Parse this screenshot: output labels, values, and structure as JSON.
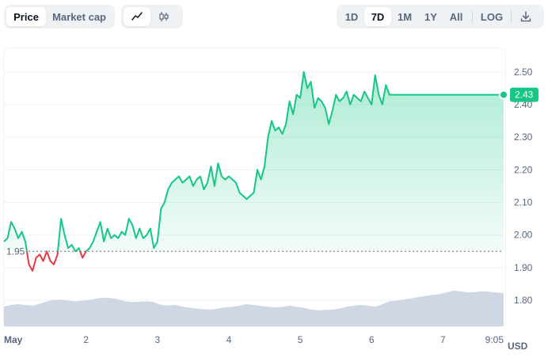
{
  "toolbar": {
    "metric_tabs": [
      {
        "label": "Price",
        "active": true
      },
      {
        "label": "Market cap",
        "active": false
      }
    ],
    "chart_types": [
      {
        "icon": "line-chart-icon",
        "active": true
      },
      {
        "icon": "candlestick-icon",
        "active": false
      }
    ],
    "ranges": [
      {
        "label": "1D",
        "active": false
      },
      {
        "label": "7D",
        "active": true
      },
      {
        "label": "1M",
        "active": false
      },
      {
        "label": "1Y",
        "active": false
      },
      {
        "label": "All",
        "active": false
      }
    ],
    "log_label": "LOG",
    "download_icon": "download-icon"
  },
  "colors": {
    "up": "#16c784",
    "down": "#ea3943",
    "volume": "#cfd6e4",
    "grid": "#eff2f5"
  },
  "chart_data": {
    "type": "line",
    "title": "",
    "x_ticks": [
      "May",
      "2",
      "3",
      "4",
      "5",
      "6",
      "7",
      "9:05"
    ],
    "y_ticks": [
      1.8,
      1.9,
      2.0,
      2.1,
      2.2,
      2.3,
      2.4,
      2.5
    ],
    "y_tick_labels": [
      "1.80",
      "1.90",
      "2.00",
      "2.10",
      "2.20",
      "2.30",
      "2.40",
      "2.50"
    ],
    "ylim": [
      1.72,
      2.57
    ],
    "xlim": [
      0,
      7.0
    ],
    "unit_label": "USD",
    "baseline": 1.95,
    "baseline_label": "1.95",
    "current_price": 2.43,
    "current_label": "2.43",
    "grid": true,
    "series": [
      {
        "x": [
          0.0,
          0.05,
          0.1,
          0.15,
          0.2,
          0.25,
          0.3,
          0.35,
          0.4,
          0.45,
          0.5,
          0.55,
          0.6,
          0.65,
          0.7,
          0.75,
          0.8,
          0.85,
          0.9,
          0.95,
          1.0,
          1.05,
          1.1,
          1.15,
          1.2,
          1.25,
          1.3,
          1.35,
          1.4,
          1.45,
          1.5,
          1.55,
          1.6,
          1.65,
          1.7,
          1.75,
          1.8,
          1.85,
          1.9,
          1.95,
          2.0,
          2.05,
          2.1,
          2.15,
          2.2,
          2.25,
          2.3,
          2.35,
          2.4,
          2.45,
          2.5,
          2.55,
          2.6,
          2.65,
          2.7,
          2.75,
          2.8,
          2.85,
          2.9,
          2.95,
          3.0,
          3.05,
          3.1,
          3.15,
          3.2,
          3.25,
          3.3,
          3.35,
          3.4,
          3.45,
          3.5,
          3.55,
          3.6,
          3.65,
          3.7,
          3.75,
          3.8,
          3.85,
          3.9,
          3.95,
          4.0,
          4.05,
          4.1,
          4.15,
          4.2,
          4.25,
          4.3,
          4.35,
          4.4,
          4.45,
          4.5,
          4.55,
          4.6,
          4.65,
          4.7,
          4.75,
          4.8,
          4.85,
          4.9,
          4.95,
          5.0,
          5.05,
          5.1,
          5.15,
          5.2,
          5.25,
          5.3,
          5.35,
          5.4,
          5.45,
          5.5,
          5.55,
          5.6,
          5.65,
          5.7,
          5.75,
          5.8,
          5.85,
          5.9,
          5.95,
          6.0,
          6.05,
          6.1,
          6.15,
          6.2,
          6.25,
          6.3,
          6.35,
          6.4,
          6.45,
          6.5,
          6.55,
          6.6,
          6.65,
          6.7,
          6.75,
          6.8,
          6.85,
          6.9,
          6.95,
          7.0
        ],
        "y": [
          1.98,
          1.99,
          2.04,
          2.02,
          1.99,
          2.01,
          1.98,
          1.91,
          1.89,
          1.93,
          1.94,
          1.92,
          1.95,
          1.92,
          1.91,
          1.94,
          2.05,
          2.0,
          1.96,
          1.97,
          1.95,
          1.96,
          1.93,
          1.95,
          1.96,
          1.98,
          2.01,
          2.04,
          1.98,
          2.02,
          1.99,
          2.0,
          1.99,
          2.01,
          2.0,
          2.05,
          2.03,
          1.99,
          2.02,
          1.99,
          2.0,
          2.02,
          1.96,
          1.98,
          2.08,
          2.1,
          2.14,
          2.16,
          2.17,
          2.18,
          2.16,
          2.17,
          2.18,
          2.15,
          2.17,
          2.18,
          2.14,
          2.16,
          2.21,
          2.15,
          2.22,
          2.18,
          2.17,
          2.18,
          2.17,
          2.16,
          2.13,
          2.12,
          2.11,
          2.12,
          2.13,
          2.2,
          2.17,
          2.21,
          2.3,
          2.35,
          2.32,
          2.33,
          2.31,
          2.34,
          2.41,
          2.37,
          2.43,
          2.42,
          2.5,
          2.45,
          2.47,
          2.39,
          2.42,
          2.41,
          2.39,
          2.34,
          2.38,
          2.43,
          2.41,
          2.42,
          2.44,
          2.4,
          2.43,
          2.42,
          2.41,
          2.44,
          2.42,
          2.4,
          2.49,
          2.43,
          2.4,
          2.46,
          2.43,
          2.43,
          2.43,
          2.43,
          2.43,
          2.43,
          2.43,
          2.43,
          2.43,
          2.43,
          2.43,
          2.43,
          2.43,
          2.43,
          2.43,
          2.43,
          2.43,
          2.43,
          2.43,
          2.43,
          2.43,
          2.43,
          2.43,
          2.43,
          2.43,
          2.43,
          2.43,
          2.43,
          2.43,
          2.43,
          2.43,
          2.43,
          2.43
        ]
      }
    ],
    "volume": [
      0.55,
      0.6,
      0.62,
      0.6,
      0.58,
      0.63,
      0.7,
      0.74,
      0.75,
      0.72,
      0.7,
      0.72,
      0.74,
      0.78,
      0.8,
      0.79,
      0.76,
      0.7,
      0.68,
      0.69,
      0.7,
      0.68,
      0.6,
      0.58,
      0.6,
      0.55,
      0.52,
      0.5,
      0.48,
      0.47,
      0.5,
      0.53,
      0.55,
      0.58,
      0.62,
      0.6,
      0.57,
      0.55,
      0.53,
      0.55,
      0.58,
      0.55,
      0.52,
      0.47,
      0.45,
      0.46,
      0.47,
      0.5,
      0.55,
      0.58,
      0.6,
      0.58,
      0.55,
      0.62,
      0.7,
      0.72,
      0.75,
      0.78,
      0.82,
      0.85,
      0.88,
      0.9,
      0.95,
      1.0,
      0.98,
      0.95,
      0.96,
      0.98,
      0.97,
      0.95,
      0.93
    ]
  }
}
